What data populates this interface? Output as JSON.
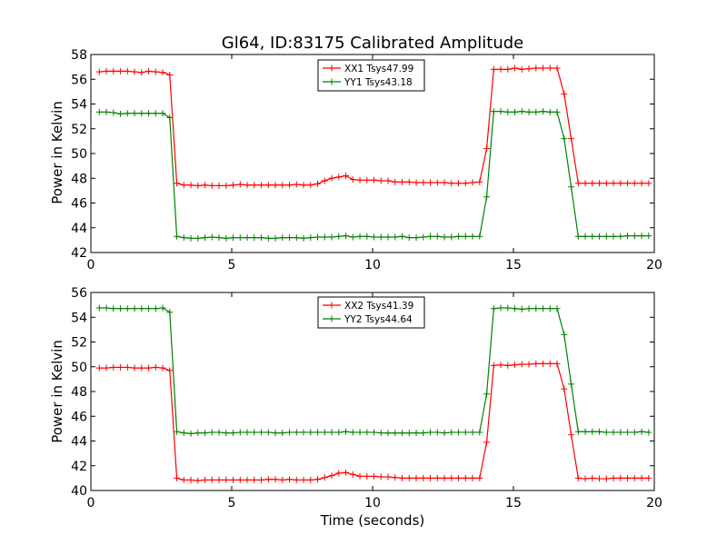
{
  "chart_data": [
    {
      "type": "line",
      "title": "Gl64, ID:83175 Calibrated Amplitude",
      "xlabel": "",
      "ylabel": "Power in Kelvin",
      "xlim": [
        0,
        20
      ],
      "ylim": [
        42,
        58
      ],
      "xticks": [
        "0",
        "5",
        "10",
        "15",
        "20"
      ],
      "yticks": [
        "42",
        "44",
        "46",
        "48",
        "50",
        "52",
        "54",
        "56",
        "58"
      ],
      "legend_position": "top-center",
      "x": [
        0.3,
        0.55,
        0.8,
        1.05,
        1.3,
        1.55,
        1.8,
        2.05,
        2.3,
        2.55,
        2.8,
        3.05,
        3.3,
        3.55,
        3.8,
        4.05,
        4.3,
        4.55,
        4.8,
        5.05,
        5.3,
        5.55,
        5.8,
        6.05,
        6.3,
        6.55,
        6.8,
        7.05,
        7.3,
        7.55,
        7.8,
        8.05,
        8.3,
        8.55,
        8.8,
        9.05,
        9.3,
        9.55,
        9.8,
        10.05,
        10.3,
        10.55,
        10.8,
        11.05,
        11.3,
        11.55,
        11.8,
        12.05,
        12.3,
        12.55,
        12.8,
        13.05,
        13.3,
        13.55,
        13.8,
        14.05,
        14.3,
        14.55,
        14.8,
        15.05,
        15.3,
        15.55,
        15.8,
        16.05,
        16.3,
        16.55,
        16.8,
        17.05,
        17.3,
        17.55,
        17.8,
        18.05,
        18.3,
        18.55,
        18.8,
        19.05,
        19.3,
        19.55,
        19.8
      ],
      "series": [
        {
          "name": "XX1 Tsys47.99",
          "color": "#ff0000",
          "values": [
            56.6,
            56.65,
            56.65,
            56.65,
            56.65,
            56.6,
            56.55,
            56.65,
            56.6,
            56.55,
            56.35,
            47.6,
            47.45,
            47.45,
            47.4,
            47.45,
            47.4,
            47.4,
            47.4,
            47.45,
            47.5,
            47.45,
            47.45,
            47.45,
            47.45,
            47.45,
            47.45,
            47.45,
            47.5,
            47.45,
            47.45,
            47.55,
            47.8,
            48.0,
            48.1,
            48.2,
            47.9,
            47.85,
            47.85,
            47.85,
            47.8,
            47.8,
            47.7,
            47.7,
            47.7,
            47.65,
            47.65,
            47.65,
            47.65,
            47.65,
            47.6,
            47.6,
            47.6,
            47.65,
            47.7,
            50.4,
            56.8,
            56.8,
            56.8,
            56.9,
            56.8,
            56.85,
            56.9,
            56.9,
            56.9,
            56.9,
            54.8,
            51.2,
            47.6,
            47.6,
            47.6,
            47.6,
            47.6,
            47.6,
            47.6,
            47.6,
            47.6,
            47.6,
            47.6
          ]
        },
        {
          "name": "YY1 Tsys43.18",
          "color": "#008000",
          "values": [
            53.35,
            53.35,
            53.3,
            53.2,
            53.25,
            53.25,
            53.25,
            53.25,
            53.25,
            53.25,
            52.9,
            43.3,
            43.2,
            43.15,
            43.15,
            43.2,
            43.25,
            43.2,
            43.15,
            43.2,
            43.2,
            43.2,
            43.2,
            43.2,
            43.15,
            43.15,
            43.2,
            43.2,
            43.2,
            43.15,
            43.2,
            43.25,
            43.25,
            43.25,
            43.3,
            43.35,
            43.25,
            43.3,
            43.3,
            43.25,
            43.25,
            43.25,
            43.25,
            43.3,
            43.2,
            43.2,
            43.25,
            43.3,
            43.3,
            43.25,
            43.25,
            43.3,
            43.3,
            43.3,
            43.3,
            46.5,
            53.4,
            53.4,
            53.35,
            53.35,
            53.4,
            53.35,
            53.35,
            53.4,
            53.35,
            53.35,
            51.2,
            47.3,
            43.3,
            43.3,
            43.3,
            43.3,
            43.3,
            43.3,
            43.3,
            43.35,
            43.35,
            43.35,
            43.35
          ]
        }
      ]
    },
    {
      "type": "line",
      "title": "",
      "xlabel": "Time (seconds)",
      "ylabel": "Power in Kelvin",
      "xlim": [
        0,
        20
      ],
      "ylim": [
        40,
        56
      ],
      "xticks": [
        "0",
        "5",
        "10",
        "15",
        "20"
      ],
      "yticks": [
        "40",
        "42",
        "44",
        "46",
        "48",
        "50",
        "52",
        "54",
        "56"
      ],
      "legend_position": "top-center",
      "x": [
        0.3,
        0.55,
        0.8,
        1.05,
        1.3,
        1.55,
        1.8,
        2.05,
        2.3,
        2.55,
        2.8,
        3.05,
        3.3,
        3.55,
        3.8,
        4.05,
        4.3,
        4.55,
        4.8,
        5.05,
        5.3,
        5.55,
        5.8,
        6.05,
        6.3,
        6.55,
        6.8,
        7.05,
        7.3,
        7.55,
        7.8,
        8.05,
        8.3,
        8.55,
        8.8,
        9.05,
        9.3,
        9.55,
        9.8,
        10.05,
        10.3,
        10.55,
        10.8,
        11.05,
        11.3,
        11.55,
        11.8,
        12.05,
        12.3,
        12.55,
        12.8,
        13.05,
        13.3,
        13.55,
        13.8,
        14.05,
        14.3,
        14.55,
        14.8,
        15.05,
        15.3,
        15.55,
        15.8,
        16.05,
        16.3,
        16.55,
        16.8,
        17.05,
        17.3,
        17.55,
        17.8,
        18.05,
        18.3,
        18.55,
        18.8,
        19.05,
        19.3,
        19.55,
        19.8
      ],
      "series": [
        {
          "name": "XX2 Tsys41.39",
          "color": "#ff0000",
          "values": [
            49.9,
            49.9,
            49.95,
            49.95,
            49.95,
            49.9,
            49.9,
            49.9,
            49.95,
            49.9,
            49.7,
            41.0,
            40.85,
            40.85,
            40.8,
            40.85,
            40.85,
            40.85,
            40.85,
            40.85,
            40.85,
            40.85,
            40.85,
            40.85,
            40.9,
            40.9,
            40.85,
            40.9,
            40.85,
            40.85,
            40.85,
            40.9,
            41.05,
            41.2,
            41.4,
            41.45,
            41.3,
            41.15,
            41.15,
            41.15,
            41.1,
            41.1,
            41.05,
            41.0,
            41.0,
            41.0,
            41.0,
            41.0,
            41.0,
            41.0,
            41.0,
            41.0,
            41.0,
            41.0,
            41.0,
            43.9,
            50.1,
            50.15,
            50.1,
            50.15,
            50.2,
            50.2,
            50.25,
            50.25,
            50.25,
            50.25,
            48.2,
            44.5,
            41.0,
            40.95,
            41.0,
            40.95,
            40.95,
            41.0,
            41.0,
            41.0,
            41.0,
            41.0,
            41.0
          ]
        },
        {
          "name": "YY2 Tsys44.64",
          "color": "#008000",
          "values": [
            54.75,
            54.75,
            54.7,
            54.7,
            54.7,
            54.7,
            54.7,
            54.7,
            54.7,
            54.75,
            54.4,
            44.75,
            44.65,
            44.6,
            44.65,
            44.65,
            44.7,
            44.7,
            44.65,
            44.65,
            44.7,
            44.7,
            44.7,
            44.7,
            44.7,
            44.65,
            44.65,
            44.7,
            44.7,
            44.7,
            44.7,
            44.7,
            44.7,
            44.7,
            44.7,
            44.75,
            44.7,
            44.7,
            44.7,
            44.7,
            44.65,
            44.65,
            44.65,
            44.65,
            44.65,
            44.65,
            44.65,
            44.7,
            44.7,
            44.65,
            44.7,
            44.7,
            44.7,
            44.7,
            44.7,
            47.8,
            54.7,
            54.75,
            54.75,
            54.7,
            54.65,
            54.7,
            54.7,
            54.7,
            54.7,
            54.7,
            52.6,
            48.6,
            44.75,
            44.75,
            44.75,
            44.75,
            44.7,
            44.7,
            44.7,
            44.7,
            44.7,
            44.75,
            44.7
          ]
        }
      ]
    }
  ]
}
